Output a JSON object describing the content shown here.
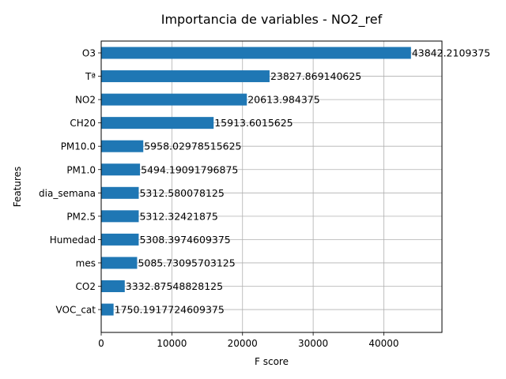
{
  "chart_data": {
    "type": "bar",
    "orientation": "horizontal",
    "title": "Importancia de variables - NO2_ref",
    "xlabel": "F score",
    "ylabel": "Features",
    "xlim": [
      0,
      48226
    ],
    "xticks": [
      0,
      10000,
      20000,
      30000,
      40000
    ],
    "grid": true,
    "categories": [
      "O3",
      "Tª",
      "NO2",
      "CH20",
      "PM10.0",
      "PM1.0",
      "dia_semana",
      "PM2.5",
      "Humedad",
      "mes",
      "CO2",
      "VOC_cat"
    ],
    "values": [
      43842.2109375,
      23827.869140625,
      20613.984375,
      15913.6015625,
      5958.02978515625,
      5494.19091796875,
      5312.580078125,
      5312.32421875,
      5308.3974609375,
      5085.73095703125,
      3332.87548828125,
      1750.1917724609375
    ],
    "data_labels": [
      "43842.2109375",
      "23827.869140625",
      "20613.984375",
      "15913.6015625",
      "5958.02978515625",
      "5494.19091796875",
      "5312.580078125",
      "5312.32421875",
      "5308.3974609375",
      "5085.73095703125",
      "3332.87548828125",
      "1750.1917724609375"
    ],
    "bar_color": "#1f77b4",
    "grid_color": "#b0b0b0"
  }
}
